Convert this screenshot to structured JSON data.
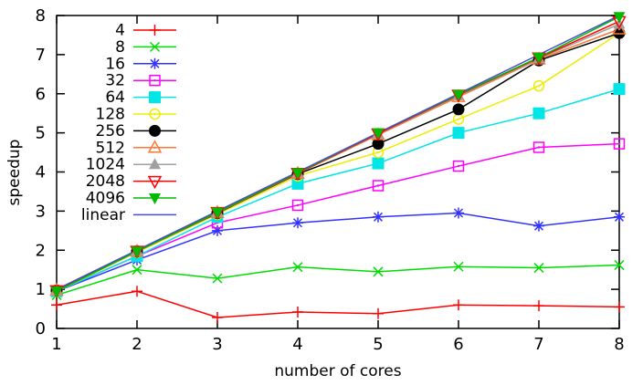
{
  "chart_data": {
    "type": "line",
    "title": "",
    "xlabel": "number of cores",
    "ylabel": "speedup",
    "x": [
      1,
      2,
      3,
      4,
      5,
      6,
      7,
      8
    ],
    "xlim": [
      1,
      8
    ],
    "ylim": [
      0,
      8
    ],
    "xticks": [
      1,
      2,
      3,
      4,
      5,
      6,
      7,
      8
    ],
    "yticks": [
      0,
      1,
      2,
      3,
      4,
      5,
      6,
      7,
      8
    ],
    "grid": false,
    "legend_position": "top-left-inside",
    "background": "#ffffff",
    "axis_color": "#000000",
    "series": [
      {
        "name": "4",
        "color": "#ff0000",
        "marker": "plus",
        "values": [
          0.6,
          0.95,
          0.28,
          0.42,
          0.38,
          0.6,
          0.58,
          0.55
        ]
      },
      {
        "name": "8",
        "color": "#00dd00",
        "marker": "cross",
        "values": [
          0.85,
          1.5,
          1.28,
          1.57,
          1.45,
          1.58,
          1.55,
          1.62
        ]
      },
      {
        "name": "16",
        "color": "#3333ff",
        "marker": "asterisk",
        "values": [
          0.95,
          1.75,
          2.5,
          2.7,
          2.85,
          2.95,
          2.62,
          2.85
        ]
      },
      {
        "name": "32",
        "color": "#ff00ff",
        "marker": "square-open",
        "values": [
          0.95,
          1.85,
          2.7,
          3.15,
          3.65,
          4.15,
          4.63,
          4.72
        ]
      },
      {
        "name": "64",
        "color": "#00e5e5",
        "marker": "square-filled",
        "values": [
          0.95,
          1.85,
          2.85,
          3.7,
          4.22,
          5.0,
          5.5,
          6.12
        ]
      },
      {
        "name": "128",
        "color": "#eded00",
        "marker": "circle-open",
        "values": [
          0.95,
          1.95,
          2.92,
          3.9,
          4.5,
          5.35,
          6.2,
          7.55
        ]
      },
      {
        "name": "256",
        "color": "#000000",
        "marker": "circle-filled",
        "values": [
          0.97,
          1.97,
          2.95,
          3.95,
          4.72,
          5.6,
          6.85,
          7.55
        ]
      },
      {
        "name": "512",
        "color": "#ff7733",
        "marker": "triangle-up-open",
        "values": [
          0.97,
          1.97,
          2.96,
          3.96,
          4.95,
          5.92,
          6.88,
          7.65
        ]
      },
      {
        "name": "1024",
        "color": "#a0a0a0",
        "marker": "triangle-up-filled",
        "values": [
          0.97,
          1.98,
          2.97,
          3.97,
          4.97,
          5.95,
          6.9,
          7.78
        ]
      },
      {
        "name": "2048",
        "color": "#ff0000",
        "marker": "triangle-down-open",
        "values": [
          0.97,
          1.98,
          2.97,
          3.97,
          4.98,
          5.97,
          6.92,
          7.85
        ]
      },
      {
        "name": "4096",
        "color": "#00bb00",
        "marker": "triangle-down-filled",
        "values": [
          0.95,
          1.97,
          2.97,
          3.98,
          5.0,
          5.98,
          6.93,
          7.97
        ]
      },
      {
        "name": "linear",
        "color": "#4a4acc",
        "marker": "none",
        "values": [
          1,
          2,
          3,
          4,
          5,
          6,
          7,
          8
        ]
      }
    ]
  }
}
